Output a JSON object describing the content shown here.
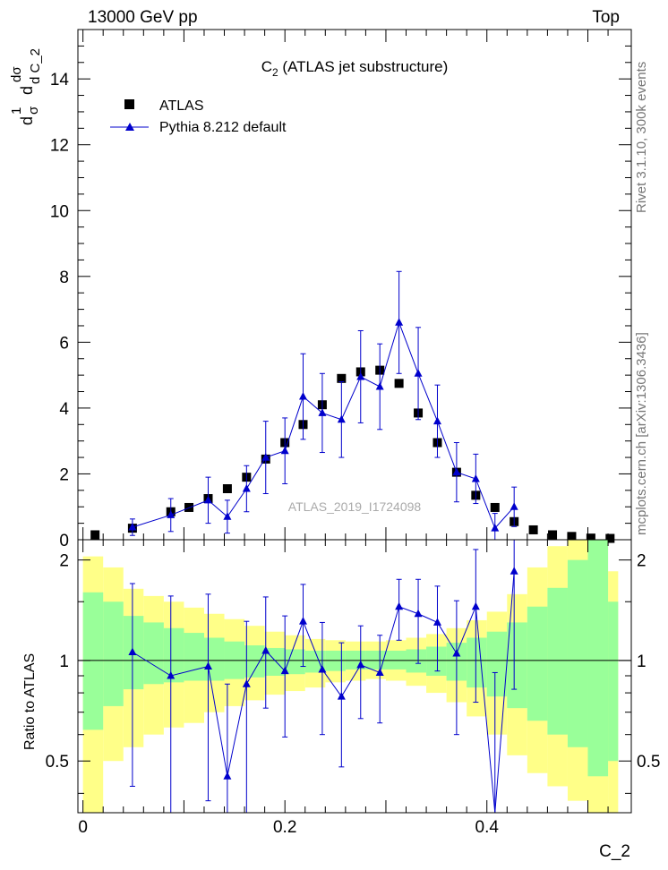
{
  "header": {
    "left": "13000 GeV pp",
    "right": "Top"
  },
  "side_labels": {
    "rivet": "Rivet 3.1.10,  300k events",
    "mcplots": "mcplots.cern.ch [arXiv:1306.3436]"
  },
  "colors": {
    "data": "#000000",
    "mc": "#0000cc",
    "band_inner": "#99ff99",
    "band_outer": "#ffff88"
  },
  "chart_data": [
    {
      "type": "scatter",
      "title": "C",
      "title_sub": "2",
      "title_rest": " (ATLAS jet substructure)",
      "ylabel": "dσ/dC_2 (1/σ)",
      "ylabel_parts": {
        "one": "1",
        "sigma": "σ",
        "d": "d",
        "dsigma": "dσ",
        "dC": "d C_2"
      },
      "watermark": "ATLAS_2019_I1724098",
      "xlim": [
        -0.005,
        0.543
      ],
      "ylim": [
        0,
        15.5
      ],
      "yticks": [
        0,
        2,
        4,
        6,
        8,
        10,
        12,
        14
      ],
      "yticklabels": [
        "0",
        "2",
        "4",
        "6",
        "8",
        "10",
        "12",
        "14"
      ],
      "legend": {
        "position": "top-left",
        "entries": [
          "ATLAS",
          "Pythia 8.212 default"
        ]
      },
      "series": [
        {
          "name": "ATLAS",
          "marker": "square",
          "x": [
            0.012,
            0.049,
            0.087,
            0.105,
            0.124,
            0.143,
            0.162,
            0.181,
            0.2,
            0.218,
            0.237,
            0.256,
            0.275,
            0.294,
            0.313,
            0.332,
            0.351,
            0.37,
            0.389,
            0.408,
            0.427,
            0.446,
            0.465,
            0.484,
            0.503,
            0.522
          ],
          "y": [
            0.15,
            0.35,
            0.85,
            0.98,
            1.25,
            1.55,
            1.9,
            2.45,
            2.95,
            3.5,
            4.1,
            4.9,
            5.1,
            5.15,
            4.75,
            3.85,
            2.95,
            2.05,
            1.35,
            0.98,
            0.55,
            0.3,
            0.15,
            0.1,
            0.05,
            0.04
          ]
        },
        {
          "name": "Pythia 8.212 default",
          "marker": "triangle",
          "x": [
            0.049,
            0.087,
            0.124,
            0.143,
            0.162,
            0.181,
            0.2,
            0.218,
            0.237,
            0.256,
            0.275,
            0.294,
            0.313,
            0.332,
            0.351,
            0.37,
            0.389,
            0.408,
            0.427
          ],
          "y": [
            0.38,
            0.75,
            1.2,
            0.7,
            1.55,
            2.5,
            2.7,
            4.35,
            3.85,
            3.65,
            4.95,
            4.65,
            6.6,
            5.05,
            3.6,
            2.05,
            1.85,
            0.35,
            1.0
          ],
          "err": [
            0.25,
            0.5,
            0.7,
            0.5,
            0.7,
            1.1,
            1.0,
            1.3,
            1.2,
            1.15,
            1.4,
            1.3,
            1.55,
            1.4,
            1.1,
            0.9,
            0.75,
            0.45,
            0.6
          ]
        }
      ]
    },
    {
      "type": "line",
      "ylabel": "Ratio to ATLAS",
      "xlabel": "C_2",
      "xlim": [
        -0.005,
        0.543
      ],
      "ylim": [
        0.35,
        2.3
      ],
      "xticks": [
        0,
        0.2,
        0.4
      ],
      "xticklabels": [
        "0",
        "0.2",
        "0.4"
      ],
      "yticks": [
        0.5,
        1,
        2
      ],
      "yticklabels": [
        "0.5",
        "1",
        "2"
      ],
      "bands": {
        "edges": [
          0.0,
          0.02,
          0.04,
          0.06,
          0.08,
          0.1,
          0.12,
          0.14,
          0.16,
          0.18,
          0.2,
          0.22,
          0.24,
          0.26,
          0.28,
          0.3,
          0.32,
          0.34,
          0.36,
          0.38,
          0.4,
          0.42,
          0.44,
          0.46,
          0.48,
          0.5,
          0.52,
          0.53
        ],
        "inner_lo": [
          0.62,
          0.73,
          0.82,
          0.85,
          0.86,
          0.87,
          0.87,
          0.88,
          0.89,
          0.9,
          0.91,
          0.92,
          0.93,
          0.94,
          0.94,
          0.94,
          0.92,
          0.9,
          0.87,
          0.83,
          0.78,
          0.72,
          0.66,
          0.6,
          0.55,
          0.45,
          0.5
        ],
        "inner_hi": [
          1.6,
          1.5,
          1.36,
          1.3,
          1.25,
          1.21,
          1.17,
          1.14,
          1.11,
          1.09,
          1.08,
          1.07,
          1.07,
          1.07,
          1.07,
          1.07,
          1.08,
          1.1,
          1.13,
          1.17,
          1.22,
          1.3,
          1.45,
          1.65,
          2.0,
          2.4,
          1.5
        ],
        "outer_lo": [
          0.3,
          0.5,
          0.55,
          0.6,
          0.63,
          0.65,
          0.7,
          0.73,
          0.76,
          0.79,
          0.81,
          0.83,
          0.86,
          0.87,
          0.88,
          0.87,
          0.84,
          0.8,
          0.75,
          0.68,
          0.6,
          0.52,
          0.46,
          0.42,
          0.38,
          0.3,
          0.3
        ],
        "outer_hi": [
          2.05,
          1.9,
          1.64,
          1.56,
          1.5,
          1.44,
          1.38,
          1.33,
          1.27,
          1.22,
          1.19,
          1.16,
          1.15,
          1.14,
          1.14,
          1.15,
          1.17,
          1.2,
          1.25,
          1.32,
          1.4,
          1.58,
          1.9,
          2.2,
          2.5,
          2.5,
          1.85
        ]
      },
      "series": [
        {
          "name": "Pythia 8.212 default",
          "x": [
            0.049,
            0.087,
            0.124,
            0.143,
            0.162,
            0.181,
            0.2,
            0.218,
            0.237,
            0.256,
            0.275,
            0.294,
            0.313,
            0.332,
            0.351,
            0.37,
            0.389,
            0.408,
            0.427
          ],
          "y": [
            1.06,
            0.9,
            0.96,
            0.45,
            0.85,
            1.07,
            0.93,
            1.31,
            0.94,
            0.78,
            0.97,
            0.92,
            1.45,
            1.38,
            1.3,
            1.05,
            1.45,
            0.32,
            1.85
          ],
          "err_lo": [
            0.64,
            0.6,
            0.58,
            0.55,
            0.5,
            0.35,
            0.34,
            0.35,
            0.34,
            0.3,
            0.3,
            0.27,
            0.3,
            0.4,
            0.37,
            0.45,
            0.7,
            0.6,
            1.03
          ],
          "err_hi": [
            0.64,
            0.66,
            0.62,
            0.4,
            0.46,
            0.48,
            0.43,
            0.38,
            0.36,
            0.35,
            0.3,
            0.27,
            0.3,
            0.37,
            0.37,
            0.46,
            0.7,
            0.6,
            0.6
          ]
        }
      ]
    }
  ]
}
